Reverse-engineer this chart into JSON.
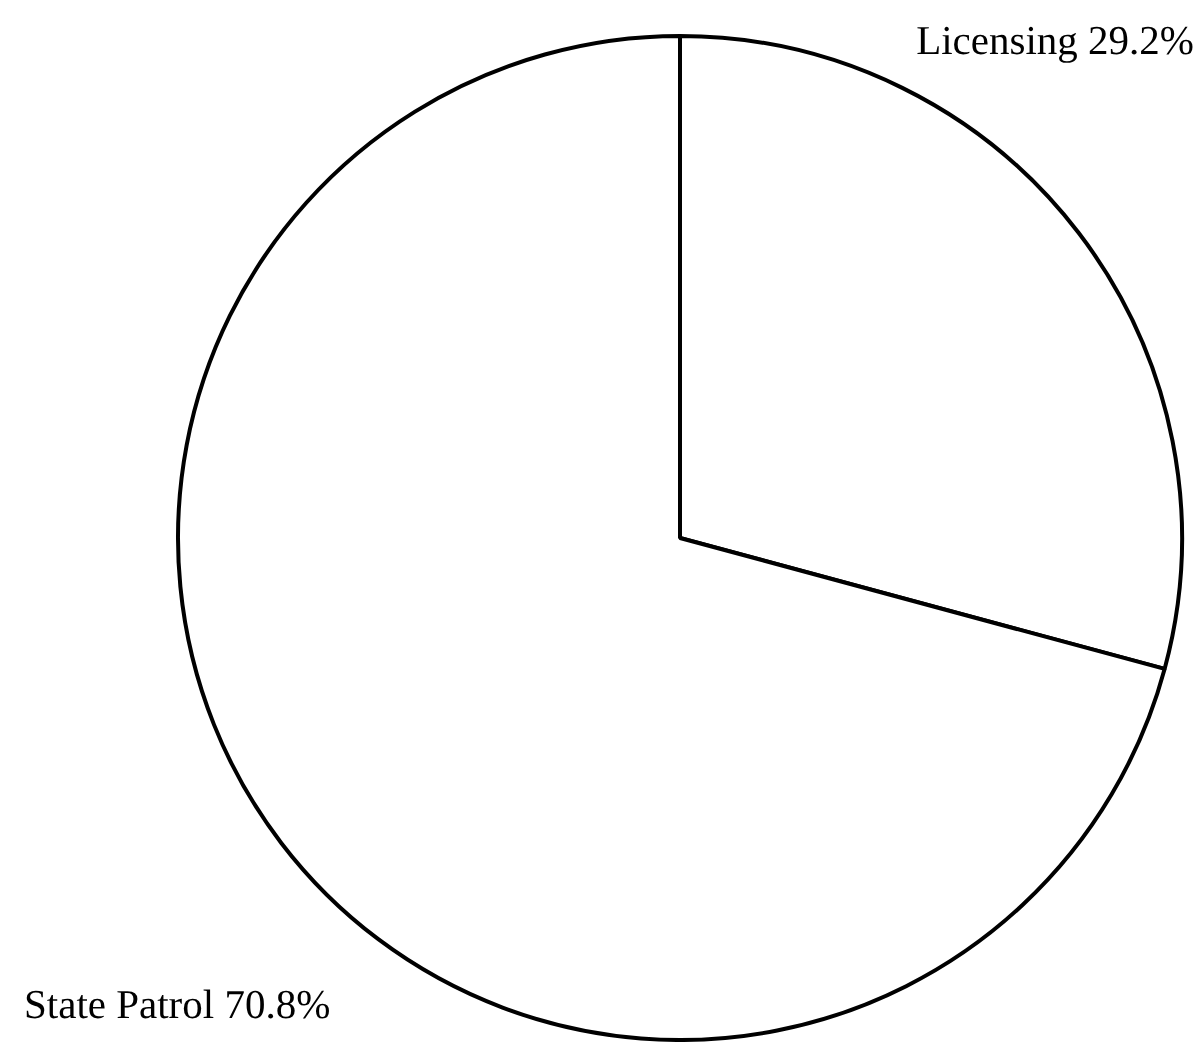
{
  "chart_data": {
    "type": "pie",
    "categories": [
      "Licensing",
      "State Patrol"
    ],
    "values": [
      29.2,
      70.8
    ],
    "colors": [
      "#ffffff",
      "#ffffff"
    ],
    "value_labels": [
      "29.2%",
      "70.8%"
    ],
    "legend": false
  }
}
